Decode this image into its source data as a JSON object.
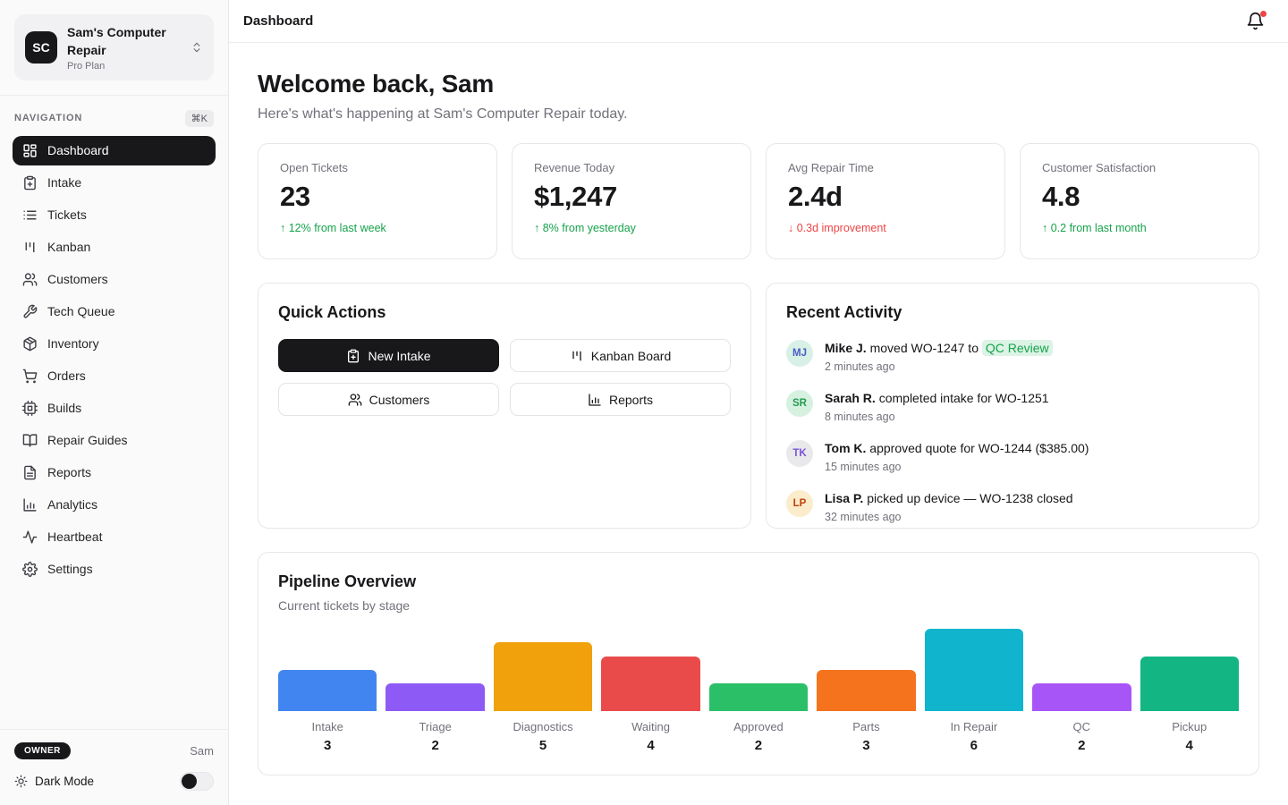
{
  "sidebar": {
    "workspace": {
      "initials": "SC",
      "name": "Sam's Computer Repair",
      "plan": "Pro Plan"
    },
    "nav_label": "NAVIGATION",
    "shortcut": "⌘K",
    "items": [
      {
        "label": "Dashboard",
        "icon": "layout-dashboard",
        "active": true
      },
      {
        "label": "Intake",
        "icon": "clipboard-plus",
        "active": false
      },
      {
        "label": "Tickets",
        "icon": "list",
        "active": false
      },
      {
        "label": "Kanban",
        "icon": "kanban",
        "active": false
      },
      {
        "label": "Customers",
        "icon": "users",
        "active": false
      },
      {
        "label": "Tech Queue",
        "icon": "wrench",
        "active": false
      },
      {
        "label": "Inventory",
        "icon": "package",
        "active": false
      },
      {
        "label": "Orders",
        "icon": "shopping-cart",
        "active": false
      },
      {
        "label": "Builds",
        "icon": "cpu",
        "active": false
      },
      {
        "label": "Repair Guides",
        "icon": "book-open",
        "active": false
      },
      {
        "label": "Reports",
        "icon": "file-text",
        "active": false
      },
      {
        "label": "Analytics",
        "icon": "bar-chart",
        "active": false
      },
      {
        "label": "Heartbeat",
        "icon": "activity",
        "active": false
      },
      {
        "label": "Settings",
        "icon": "settings",
        "active": false
      }
    ],
    "footer": {
      "role_badge": "OWNER",
      "user": "Sam",
      "dark_mode_label": "Dark Mode",
      "dark_mode_on": false
    }
  },
  "header": {
    "title": "Dashboard",
    "has_unread": true,
    "unread_dot_color": "#ef4444"
  },
  "welcome": {
    "title": "Welcome back, Sam",
    "subtitle": "Here's what's happening at Sam's Computer Repair today."
  },
  "stats": [
    {
      "label": "Open Tickets",
      "value": "23",
      "delta": "↑ 12% from last week",
      "delta_color": "#16a34a"
    },
    {
      "label": "Revenue Today",
      "value": "$1,247",
      "delta": "↑ 8% from yesterday",
      "delta_color": "#16a34a"
    },
    {
      "label": "Avg Repair Time",
      "value": "2.4d",
      "delta": "↓ 0.3d improvement",
      "delta_color": "#ef4444"
    },
    {
      "label": "Customer Satisfaction",
      "value": "4.8",
      "delta": "↑ 0.2 from last month",
      "delta_color": "#16a34a"
    }
  ],
  "quick_actions": {
    "title": "Quick Actions",
    "buttons": [
      {
        "label": "New Intake",
        "icon": "clipboard-plus",
        "primary": true
      },
      {
        "label": "Kanban Board",
        "icon": "kanban",
        "primary": false
      },
      {
        "label": "Customers",
        "icon": "users",
        "primary": false
      },
      {
        "label": "Reports",
        "icon": "bar-chart",
        "primary": false
      }
    ]
  },
  "recent_activity": {
    "title": "Recent Activity",
    "highlight_bg": "#dcf3e6",
    "highlight_color": "#16a34a",
    "items": [
      {
        "initials": "MJ",
        "avatar_bg": "#d9f0e7",
        "avatar_color": "#4a5ec1",
        "actor": "Mike J.",
        "text": "moved WO-1247 to ",
        "highlight": "QC Review",
        "time": "2 minutes ago"
      },
      {
        "initials": "SR",
        "avatar_bg": "#d6f1e0",
        "avatar_color": "#259b52",
        "actor": "Sarah R.",
        "text": "completed intake for WO-1251",
        "highlight": null,
        "time": "8 minutes ago"
      },
      {
        "initials": "TK",
        "avatar_bg": "#e9e9eb",
        "avatar_color": "#7a52d9",
        "actor": "Tom K.",
        "text": "approved quote for WO-1244 ($385.00)",
        "highlight": null,
        "time": "15 minutes ago"
      },
      {
        "initials": "LP",
        "avatar_bg": "#fbeccb",
        "avatar_color": "#c2410c",
        "actor": "Lisa P.",
        "text": "picked up device — WO-1238 closed",
        "highlight": null,
        "time": "32 minutes ago"
      }
    ]
  },
  "chart_data": {
    "type": "bar",
    "title": "Pipeline Overview",
    "subtitle": "Current tickets by stage",
    "categories": [
      "Intake",
      "Triage",
      "Diagnostics",
      "Waiting",
      "Approved",
      "Parts",
      "In Repair",
      "QC",
      "Pickup"
    ],
    "values": [
      3,
      2,
      5,
      4,
      2,
      3,
      6,
      2,
      4
    ],
    "colors": [
      "#4186f0",
      "#8e5af5",
      "#f0a10c",
      "#e94b4b",
      "#2bbf68",
      "#f4731c",
      "#10b5cd",
      "#a855f7",
      "#13b583"
    ],
    "ylim": [
      0,
      6
    ],
    "grid": false,
    "legend": false,
    "value_labels": true
  }
}
